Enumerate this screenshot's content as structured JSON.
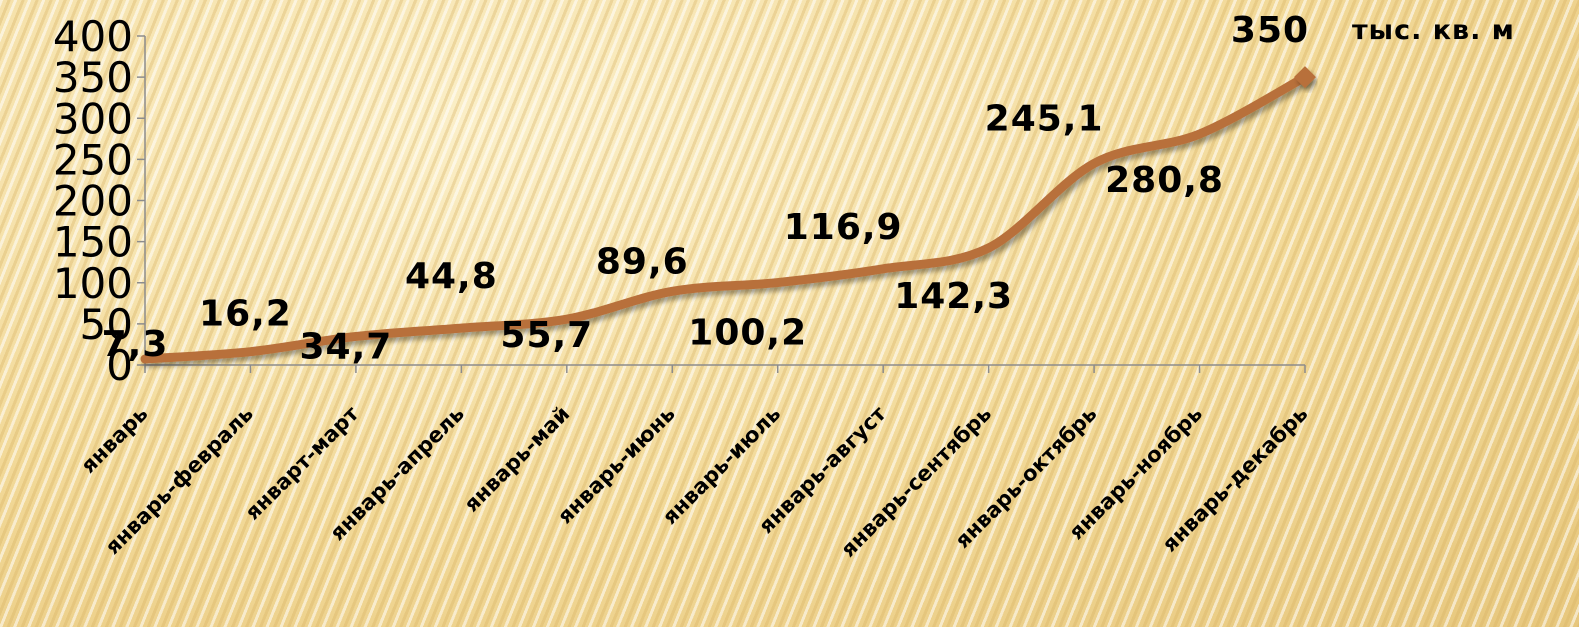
{
  "chart_data": {
    "type": "line",
    "categories": [
      "январь",
      "январь-февраль",
      "январт-март",
      "январь-апрель",
      "январь-май",
      "январь-июнь",
      "январь-июль",
      "январь-август",
      "январь-сентябрь",
      "январь-октябрь",
      "январь-ноябрь",
      "январь-декабрь"
    ],
    "series": [
      {
        "values": [
          7.3,
          16.2,
          34.7,
          44.8,
          55.7,
          89.6,
          100.2,
          116.9,
          142.3,
          245.1,
          280.8,
          350
        ]
      }
    ],
    "data_labels": [
      "7,3",
      "16,2",
      "34,7",
      "44,8",
      "55,7",
      "89,6",
      "100,2",
      "116,9",
      "142,3",
      "245,1",
      "280,8",
      "350"
    ],
    "yticks": [
      0,
      50,
      100,
      150,
      200,
      250,
      300,
      350,
      400
    ],
    "ylim": [
      0,
      400
    ],
    "unit_label": "тыс. кв. м",
    "title": "",
    "xlabel": "",
    "ylabel": "",
    "grid": false,
    "line_color": "#b8703a"
  }
}
